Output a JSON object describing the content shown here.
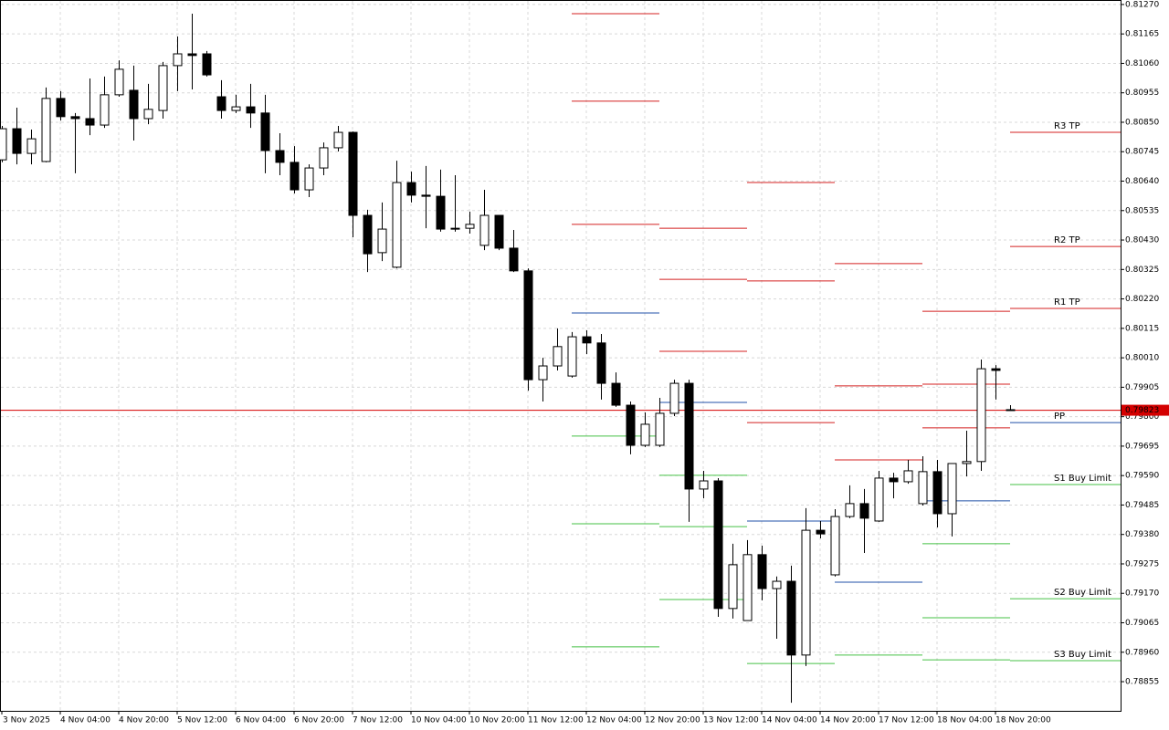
{
  "chart_data": {
    "type": "candlestick",
    "categories": [
      "3 Nov 2025",
      null,
      null,
      null,
      "4 Nov 04:00",
      null,
      null,
      null,
      "4 Nov 20:00",
      null,
      null,
      null,
      "5 Nov 12:00",
      null,
      null,
      null,
      "6 Nov 04:00",
      null,
      null,
      null,
      "6 Nov 20:00",
      null,
      null,
      null,
      "7 Nov 12:00",
      null,
      null,
      null,
      "10 Nov 04:00",
      null,
      null,
      null,
      "10 Nov 20:00",
      null,
      null,
      null,
      "11 Nov 12:00",
      null,
      null,
      null,
      "12 Nov 04:00",
      null,
      null,
      null,
      "12 Nov 20:00",
      null,
      null,
      null,
      "13 Nov 12:00",
      null,
      null,
      null,
      "14 Nov 04:00",
      null,
      null,
      null,
      "14 Nov 20:00",
      null,
      null,
      null,
      "17 Nov 12:00",
      null,
      null,
      null,
      "18 Nov 04:00",
      null,
      null,
      null,
      "18 Nov 20:00",
      null
    ],
    "open": [
      0.80716,
      0.80827,
      0.80739,
      0.8071,
      0.80935,
      0.8087,
      0.80863,
      0.8084,
      0.80948,
      0.80964,
      0.80863,
      0.80892,
      0.81052,
      0.81094,
      0.81094,
      0.80941,
      0.80892,
      0.80905,
      0.80883,
      0.80749,
      0.80707,
      0.80609,
      0.80687,
      0.80759,
      0.80814,
      0.80518,
      0.80385,
      0.80333,
      0.80635,
      0.8059,
      0.80586,
      0.80472,
      0.80472,
      0.80411,
      0.80518,
      0.80401,
      0.8032,
      0.79932,
      0.79981,
      0.79945,
      0.80085,
      0.80063,
      0.79919,
      0.79841,
      0.79698,
      0.79698,
      0.79812,
      0.79919,
      0.79542,
      0.79571,
      0.79116,
      0.79073,
      0.79308,
      0.79187,
      0.79213,
      0.7895,
      0.79395,
      0.79236,
      0.79444,
      0.7949,
      0.79428,
      0.79581,
      0.79568,
      0.7949,
      0.79604,
      0.79454,
      0.79633,
      0.7964,
      0.79971,
      0.79825
    ],
    "high": [
      0.80837,
      0.80902,
      0.80824,
      0.80974,
      0.80961,
      0.80883,
      0.81006,
      0.81013,
      0.81071,
      0.81052,
      0.80987,
      0.81065,
      0.81156,
      0.81237,
      0.81104,
      0.81,
      0.80948,
      0.80987,
      0.80948,
      0.80811,
      0.80765,
      0.807,
      0.80778,
      0.80837,
      0.80817,
      0.80538,
      0.80564,
      0.80713,
      0.80674,
      0.80694,
      0.80681,
      0.80661,
      0.80531,
      0.80609,
      0.80518,
      0.80466,
      0.80329,
      0.8001,
      0.80115,
      0.80102,
      0.80108,
      0.80095,
      0.79958,
      0.79854,
      0.79815,
      0.79867,
      0.79932,
      0.79932,
      0.79607,
      0.79581,
      0.79347,
      0.7936,
      0.7934,
      0.7923,
      0.79269,
      0.79474,
      0.79428,
      0.7947,
      0.79555,
      0.79542,
      0.79607,
      0.796,
      0.79646,
      0.79659,
      0.79646,
      0.79633,
      0.7975,
      0.80004,
      0.79984,
      0.79841
    ],
    "low": [
      0.80707,
      0.807,
      0.807,
      0.80707,
      0.80856,
      0.80668,
      0.80804,
      0.8083,
      0.80941,
      0.80785,
      0.80843,
      0.80863,
      0.80961,
      0.80967,
      0.81013,
      0.80863,
      0.80883,
      0.8083,
      0.80668,
      0.80661,
      0.80596,
      0.80583,
      0.80661,
      0.80746,
      0.8044,
      0.80316,
      0.80355,
      0.80329,
      0.80564,
      0.80472,
      0.8046,
      0.8046,
      0.80453,
      0.80394,
      0.80394,
      0.80316,
      0.79893,
      0.79854,
      0.79965,
      0.79939,
      0.80023,
      0.79861,
      0.79835,
      0.79666,
      0.79692,
      0.79692,
      0.79802,
      0.79425,
      0.79509,
      0.79086,
      0.7908,
      0.79073,
      0.79145,
      0.79008,
      0.7878,
      0.78911,
      0.79366,
      0.7923,
      0.79438,
      0.79314,
      0.79425,
      0.79509,
      0.79561,
      0.79483,
      0.79405,
      0.79373,
      0.79587,
      0.79607,
      0.79861,
      0.79822
    ],
    "close": [
      0.80827,
      0.80739,
      0.80791,
      0.80935,
      0.8087,
      0.80863,
      0.8084,
      0.80948,
      0.81039,
      0.80863,
      0.80896,
      0.81052,
      0.81094,
      0.81088,
      0.81019,
      0.80892,
      0.80905,
      0.80883,
      0.80749,
      0.80707,
      0.80609,
      0.80687,
      0.80759,
      0.80814,
      0.80518,
      0.80381,
      0.80469,
      0.80635,
      0.8059,
      0.80586,
      0.80469,
      0.80469,
      0.80486,
      0.80518,
      0.80401,
      0.8032,
      0.79932,
      0.79981,
      0.8005,
      0.80085,
      0.80063,
      0.79919,
      0.79841,
      0.79698,
      0.79773,
      0.79812,
      0.79919,
      0.79542,
      0.79571,
      0.79116,
      0.79272,
      0.79308,
      0.79187,
      0.79213,
      0.7895,
      0.79395,
      0.79382,
      0.79444,
      0.7949,
      0.79438,
      0.79581,
      0.79568,
      0.79607,
      0.79604,
      0.79454,
      0.79633,
      0.7964,
      0.79971,
      0.79965,
      0.79823
    ],
    "up_color": "#ffffff",
    "down_color": "#000000",
    "levels": [
      {
        "name": "R3 TP",
        "color": "#d42020",
        "values": [
          0.81237,
          0.80472,
          0.80635,
          0.80346,
          0.80176,
          0.80814
        ]
      },
      {
        "name": "R2 TP",
        "color": "#d42020",
        "values": [
          0.80925,
          0.8029,
          0.80284,
          0.7991,
          0.79916,
          0.80407
        ]
      },
      {
        "name": "R1 TP",
        "color": "#d42020",
        "values": [
          0.80486,
          0.80033,
          0.79779,
          0.79646,
          0.7976,
          0.80186
        ]
      },
      {
        "name": "PP",
        "color": "#2050a8",
        "values": [
          0.8017,
          0.79851,
          0.79428,
          0.7921,
          0.795,
          0.79779
        ]
      },
      {
        "name": "S1 Buy Limit",
        "color": "#46c046",
        "values": [
          0.79731,
          0.79591,
          null,
          null,
          0.79347,
          0.79558
        ]
      },
      {
        "name": "S2 Buy Limit",
        "color": "#46c046",
        "values": [
          0.79418,
          0.79408,
          null,
          null,
          0.79083,
          0.79151
        ]
      },
      {
        "name": "S3 Buy Limit",
        "color": "#46c046",
        "values": [
          0.78979,
          0.79148,
          0.7892,
          0.7895,
          0.78933,
          0.7893
        ]
      }
    ],
    "last_price": 0.79823,
    "last_price_color": "#d40000",
    "ylim": [
      0.78751,
      0.81286
    ],
    "yticks": [
      {
        "value": 0.8127,
        "label": "0.81270"
      },
      0.81165,
      {
        "value": 0.8106,
        "label": "0.81060"
      },
      0.80955,
      {
        "value": 0.8085,
        "label": "0.80850"
      },
      0.80745,
      {
        "value": 0.8064,
        "label": "0.80640"
      },
      0.80535,
      {
        "value": 0.8043,
        "label": "0.80430"
      },
      0.80325,
      {
        "value": 0.8022,
        "label": "0.80220"
      },
      0.80115,
      {
        "value": 0.8001,
        "label": "0.80010"
      },
      0.79905,
      {
        "value": 0.798,
        "label": "0.79800"
      },
      0.79695,
      {
        "value": 0.7959,
        "label": "0.79590"
      },
      0.79485,
      {
        "value": 0.7938,
        "label": "0.79380"
      },
      0.79275,
      {
        "value": 0.7917,
        "label": "0.79170"
      },
      0.79065,
      {
        "value": 0.7896,
        "label": "0.78960"
      },
      0.78855
    ],
    "grid": true
  }
}
